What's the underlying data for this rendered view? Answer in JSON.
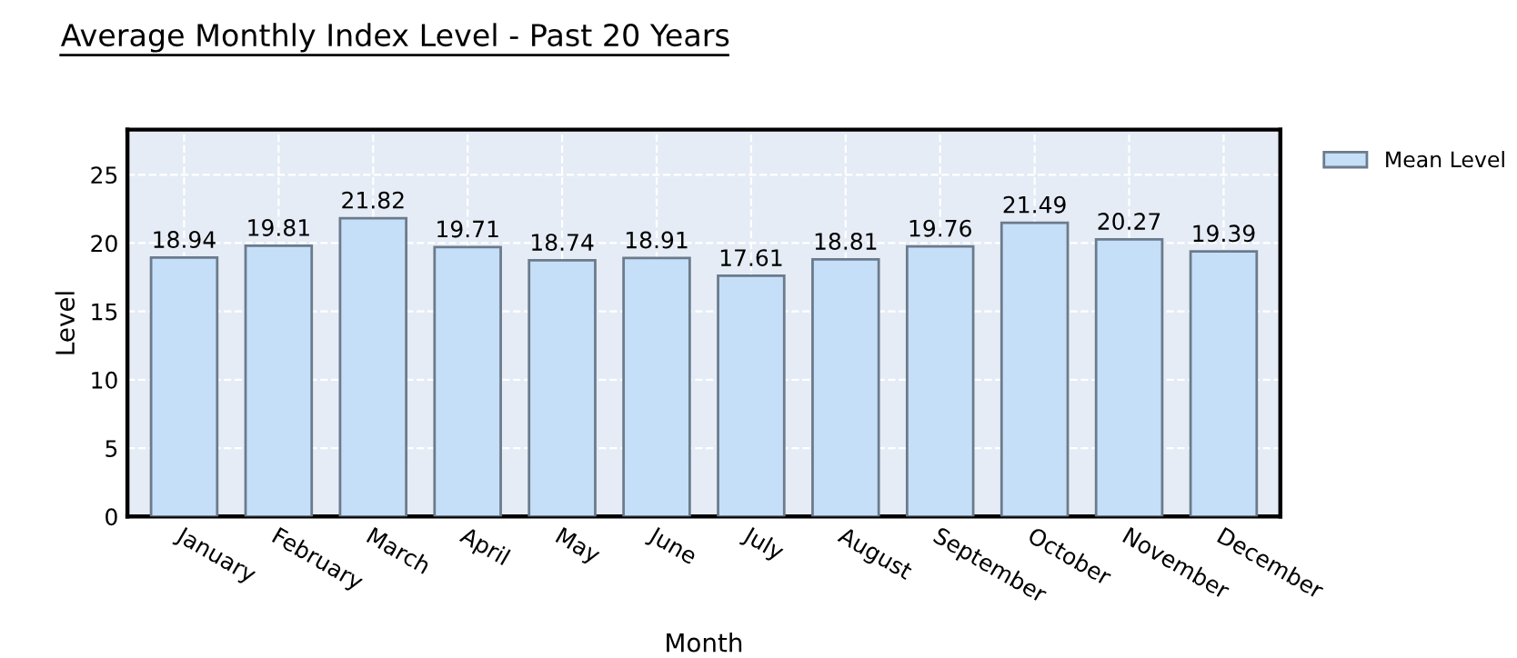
{
  "chart_data": {
    "type": "bar",
    "title": "Average Monthly Index Level - Past 20 Years",
    "xlabel": "Month",
    "ylabel": "Level",
    "categories": [
      "January",
      "February",
      "March",
      "April",
      "May",
      "June",
      "July",
      "August",
      "September",
      "October",
      "November",
      "December"
    ],
    "series": [
      {
        "name": "Mean Level",
        "color": "#c6dff8",
        "values": [
          18.94,
          19.81,
          21.82,
          19.71,
          18.74,
          18.91,
          17.61,
          18.81,
          19.76,
          21.49,
          20.27,
          19.39
        ]
      }
    ],
    "ylim": [
      0,
      28.3
    ],
    "yticks": [
      0,
      5,
      10,
      15,
      20,
      25
    ],
    "grid": true,
    "legend": "top right",
    "data_labels": true
  }
}
